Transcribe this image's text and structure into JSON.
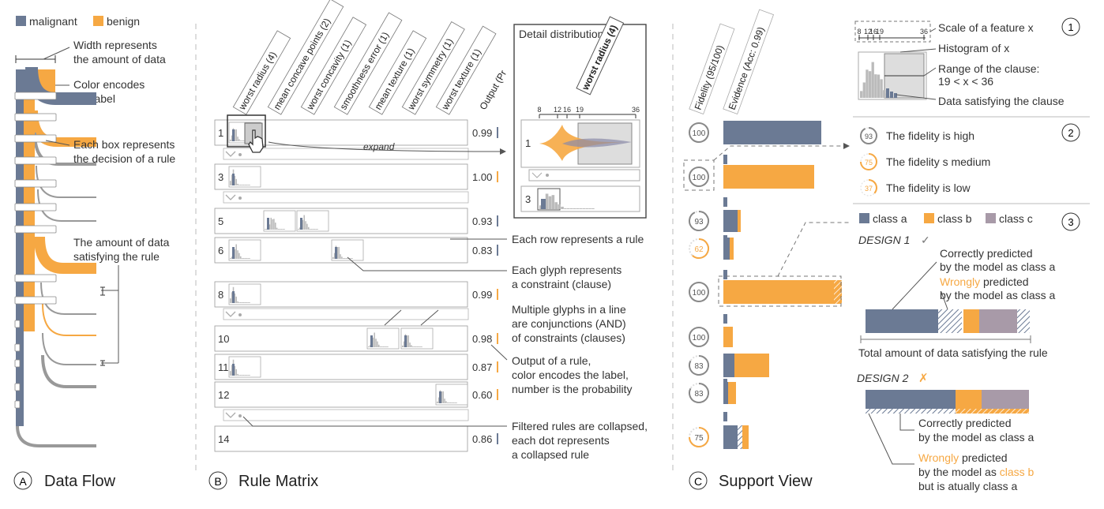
{
  "colors": {
    "malignant": "#6b7a94",
    "benign": "#f6a843",
    "classC": "#a89aa8",
    "grey": "#999999",
    "light": "#e0e0e0"
  },
  "panelA": {
    "letter": "A",
    "title": "Data Flow",
    "legend": {
      "malignant": "malignant",
      "benign": "benign"
    },
    "annotations": {
      "width1": "Width represents",
      "width2": "the amount of data",
      "color1": "Color encodes",
      "color2": "the label",
      "box1": "Each box represents",
      "box2": "the decision of a rule",
      "amt1": "The amount of data",
      "amt2": "satisfying the rule"
    }
  },
  "panelB": {
    "letter": "B",
    "title": "Rule Matrix",
    "headers": [
      "worst radius (4)",
      "mean concave points (2)",
      "worst concavity (1)",
      "smoothness error (1)",
      "mean texture (1)",
      "worst symmetry (1)",
      "worst texture (1)",
      "Output (Pr"
    ],
    "rows": [
      {
        "id": "1",
        "out": "0.99",
        "label": "malignant"
      },
      {
        "id": "3",
        "out": "1.00",
        "label": "benign"
      },
      {
        "id": "5",
        "out": "0.93",
        "label": "malignant"
      },
      {
        "id": "6",
        "out": "0.83",
        "label": "malignant"
      },
      {
        "id": "8",
        "out": "0.99",
        "label": "benign"
      },
      {
        "id": "10",
        "out": "0.98",
        "label": "benign"
      },
      {
        "id": "11",
        "out": "0.87",
        "label": "benign"
      },
      {
        "id": "12",
        "out": "0.60",
        "label": "benign"
      },
      {
        "id": "14",
        "out": "0.86",
        "label": "malignant"
      }
    ],
    "expand": "expand",
    "detail": {
      "title": "Detail distribution",
      "feature": "worst radius (4)",
      "ticks": [
        "8",
        "12",
        "16",
        "19",
        "36"
      ],
      "row1": "1",
      "row3": "3"
    },
    "annotations": {
      "row": "Each row represents a rule",
      "glyph1": "Each glyph represents",
      "glyph2": "a constraint (clause)",
      "multi1": "Multiple glyphs in a line",
      "multi2": "are conjunctions (AND)",
      "multi3": "of constraints (clauses)",
      "out1": "Output of a rule,",
      "out2": "color encodes the label,",
      "out3": "number is the probability",
      "filt1": "Filtered rules are collapsed,",
      "filt2": "each dot represents",
      "filt3": "a collapsed rule"
    }
  },
  "panelC": {
    "letter": "C",
    "title": "Support View",
    "headers": [
      "Fidelity (95/100)",
      "Evidence (Acc: 0.99)"
    ],
    "fidelity": [
      "100",
      "100",
      "93",
      "62",
      "100",
      "100",
      "83",
      "83",
      "75"
    ],
    "legend1": {
      "circle": "1",
      "scale": "Scale of a feature x",
      "ticks": [
        "8",
        "12",
        "16",
        "19",
        "36"
      ],
      "hist": "Histogram of x",
      "range1": "Range of the clause:",
      "range2": "19 < x < 36",
      "satisfy": "Data satisfying the clause"
    },
    "legend2": {
      "circle": "2",
      "items": [
        {
          "num": "93",
          "text": "The fidelity is high"
        },
        {
          "num": "75",
          "text": "The fidelity s medium"
        },
        {
          "num": "37",
          "text": "The fidelity is low"
        }
      ]
    },
    "legend3": {
      "circle": "3",
      "classA": "class a",
      "classB": "class b",
      "classC": "class c",
      "design1": "DESIGN 1",
      "check": "✓",
      "c1": "Correctly predicted",
      "c2": "by the model as class a",
      "wrongWord": "Wrongly",
      "w1rest": " predicted",
      "w2": "by the model as class a",
      "total": "Total amount of data satisfying the rule",
      "design2": "DESIGN 2",
      "cross": "✗",
      "d2c1": "Correctly predicted",
      "d2c2": "by the model as class a",
      "d2w1rest": " predicted",
      "d2w2pre": "by the model as ",
      "d2w2cls": "class b",
      "d2w3": "but is atually class a"
    }
  }
}
